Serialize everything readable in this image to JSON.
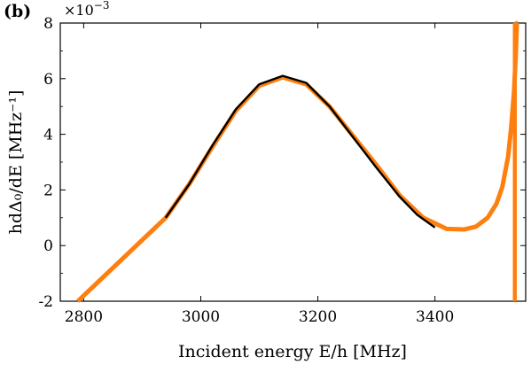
{
  "chart_data": {
    "type": "line",
    "panel_label": "(b)",
    "multiplier": "×10",
    "multiplier_exp": "−3",
    "xlabel": "Incident energy E/h [MHz]",
    "ylabel": "hdΔ₀/dE [MHz⁻¹]",
    "xlim": [
      2760,
      3555
    ],
    "ylim": [
      -2,
      8
    ],
    "x_ticks": [
      2800,
      3000,
      3200,
      3400
    ],
    "y_ticks": [
      -2,
      0,
      2,
      4,
      6,
      8
    ],
    "y_tick_labels": [
      "-2",
      "0",
      "2",
      "4",
      "6",
      "8"
    ],
    "grid": false,
    "series": [
      {
        "color": "#ff7f0e",
        "x": [
          2790,
          2800,
          2850,
          2900,
          2940,
          2980,
          3020,
          3060,
          3100,
          3140,
          3180,
          3220,
          3260,
          3300,
          3340,
          3380,
          3420,
          3450,
          3470,
          3490,
          3505,
          3515,
          3525,
          3530,
          3535,
          3538,
          3540,
          3541
        ],
        "y": [
          -2.0,
          -1.8,
          -0.8,
          0.2,
          1.0,
          2.2,
          3.55,
          4.85,
          5.75,
          6.05,
          5.8,
          5.0,
          3.95,
          2.9,
          1.8,
          1.0,
          0.6,
          0.58,
          0.68,
          1.0,
          1.5,
          2.1,
          3.2,
          4.2,
          5.5,
          6.8,
          8.0,
          8.0
        ]
      },
      {
        "color": "#000000",
        "x": [
          2940,
          2980,
          3020,
          3060,
          3100,
          3140,
          3180,
          3220,
          3260,
          3300,
          3340,
          3370,
          3400
        ],
        "y": [
          1.0,
          2.2,
          3.6,
          4.9,
          5.8,
          6.1,
          5.85,
          5.0,
          3.9,
          2.8,
          1.75,
          1.1,
          0.65
        ]
      }
    ],
    "vertical_line": {
      "x": 3541,
      "y": [
        -2,
        8
      ],
      "color": "#ff7f0e"
    }
  }
}
